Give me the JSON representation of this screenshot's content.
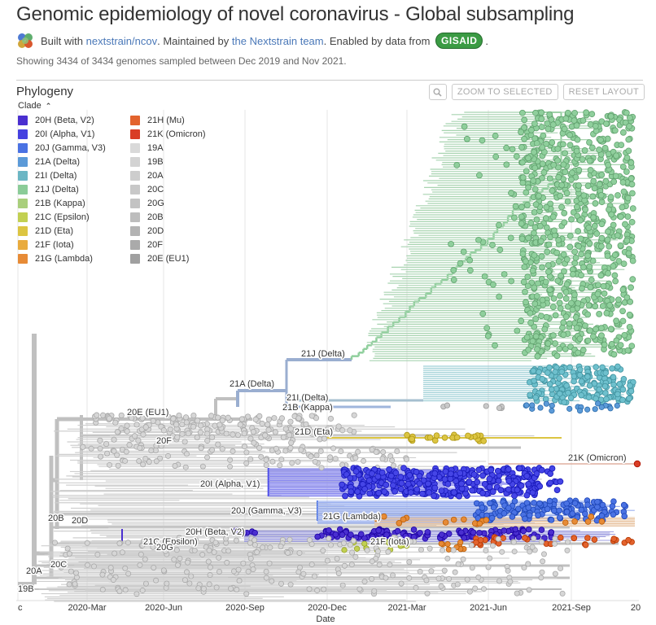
{
  "header": {
    "title": "Genomic epidemiology of novel coronavirus - Global subsampling",
    "built_with": "Built with",
    "build_link": "nextstrain/ncov",
    "maintained_by": ". Maintained by",
    "team_link": "the Nextstrain team",
    "enabled_by": ". Enabled by data from",
    "gisaid": "GISAID",
    "end_period": "."
  },
  "summary": "Showing 3434 of 3434 genomes sampled between Dec 2019 and Nov 2021.",
  "panel": {
    "title": "Phylogeny",
    "zoom_label": "ZOOM TO SELECTED",
    "reset_label": "RESET LAYOUT"
  },
  "legend": {
    "title": "Clade",
    "col1": [
      {
        "label": "20H (Beta, V2)",
        "color": "#4a2fd0"
      },
      {
        "label": "20I (Alpha, V1)",
        "color": "#4541e0"
      },
      {
        "label": "20J (Gamma, V3)",
        "color": "#4a72e3"
      },
      {
        "label": "21A (Delta)",
        "color": "#5b9ad8"
      },
      {
        "label": "21I (Delta)",
        "color": "#6bb6c4"
      },
      {
        "label": "21J (Delta)",
        "color": "#8bcc98"
      },
      {
        "label": "21B (Kappa)",
        "color": "#a9cf7c"
      },
      {
        "label": "21C (Epsilon)",
        "color": "#c2d052"
      },
      {
        "label": "21D (Eta)",
        "color": "#dcc542"
      },
      {
        "label": "21F (Iota)",
        "color": "#e9ab3d"
      },
      {
        "label": "21G (Lambda)",
        "color": "#e78b36"
      }
    ],
    "col2": [
      {
        "label": "21H (Mu)",
        "color": "#e3632d"
      },
      {
        "label": "21K (Omicron)",
        "color": "#d93d25"
      },
      {
        "label": "19A",
        "color": "#d9d9d9"
      },
      {
        "label": "19B",
        "color": "#d3d3d3"
      },
      {
        "label": "20A",
        "color": "#cdcdcd"
      },
      {
        "label": "20C",
        "color": "#c8c8c8"
      },
      {
        "label": "20G",
        "color": "#c3c3c3"
      },
      {
        "label": "20B",
        "color": "#bdbdbd"
      },
      {
        "label": "20D",
        "color": "#b3b3b3"
      },
      {
        "label": "20F",
        "color": "#aaaaaa"
      },
      {
        "label": "20E (EU1)",
        "color": "#a0a0a0"
      }
    ]
  },
  "axis": {
    "title": "Date",
    "ticks": [
      "c",
      "2020-Mar",
      "2020-Jun",
      "2020-Sep",
      "2020-Dec",
      "2021-Mar",
      "2021-Jun",
      "2021-Sep",
      "20"
    ]
  },
  "clade_labels": [
    "21J (Delta)",
    "21A (Delta)",
    "21I (Delta)",
    "21B (Kappa)",
    "20E (EU1)",
    "21D (Eta)",
    "20F",
    "21K (Omicron)",
    "20I (Alpha, V1)",
    "20J (Gamma, V3)",
    "21G (Lambda)",
    "20B",
    "20D",
    "20H (Beta, V2)",
    "21C (Epsilon)",
    "21F (Iota)",
    "20G",
    "20C",
    "20A",
    "19B"
  ],
  "colors": {
    "branch_grey": "#c0c0c0",
    "delta": "#8fcf9c",
    "delta21i": "#6ec0cd",
    "kappa": "#5b9ad8",
    "alpha": "#4545e6",
    "gamma": "#4a72e3",
    "beta": "#4a2fd0",
    "lambda": "#e78b36",
    "mu": "#e3632d",
    "omicron": "#d93d25",
    "eta": "#dcc542",
    "epsilon": "#c2d052",
    "grey_tip": "#d6d6d6"
  }
}
